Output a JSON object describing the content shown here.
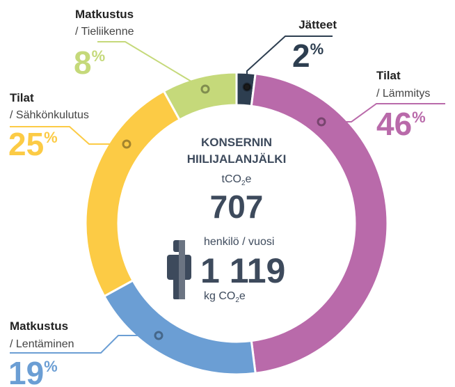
{
  "chart_data": {
    "type": "donut",
    "groups": [
      "Jätteet",
      "Tilat",
      "Matkustus",
      "Tilat",
      "Matkustus"
    ],
    "categories": [
      null,
      "/ Lämmitys",
      "/ Lentäminen",
      "/ Sähkönkulutus",
      "/ Tieliikenne"
    ],
    "values": [
      2,
      46,
      19,
      25,
      8
    ],
    "unit": "%",
    "colors": [
      "#2d3e50",
      "#b96aaa",
      "#6b9ed4",
      "#fccb45",
      "#c5d97a"
    ],
    "center": {
      "title_lines": [
        "KONSERNIN",
        "HIILIJALANJÄLKI"
      ],
      "total_unit": [
        "tCO",
        "2",
        "e"
      ],
      "total": "707",
      "per_person_caption": "henkilö / vuosi",
      "per_person": "1 119",
      "per_person_unit": [
        "kg CO",
        "2",
        "e"
      ]
    }
  }
}
